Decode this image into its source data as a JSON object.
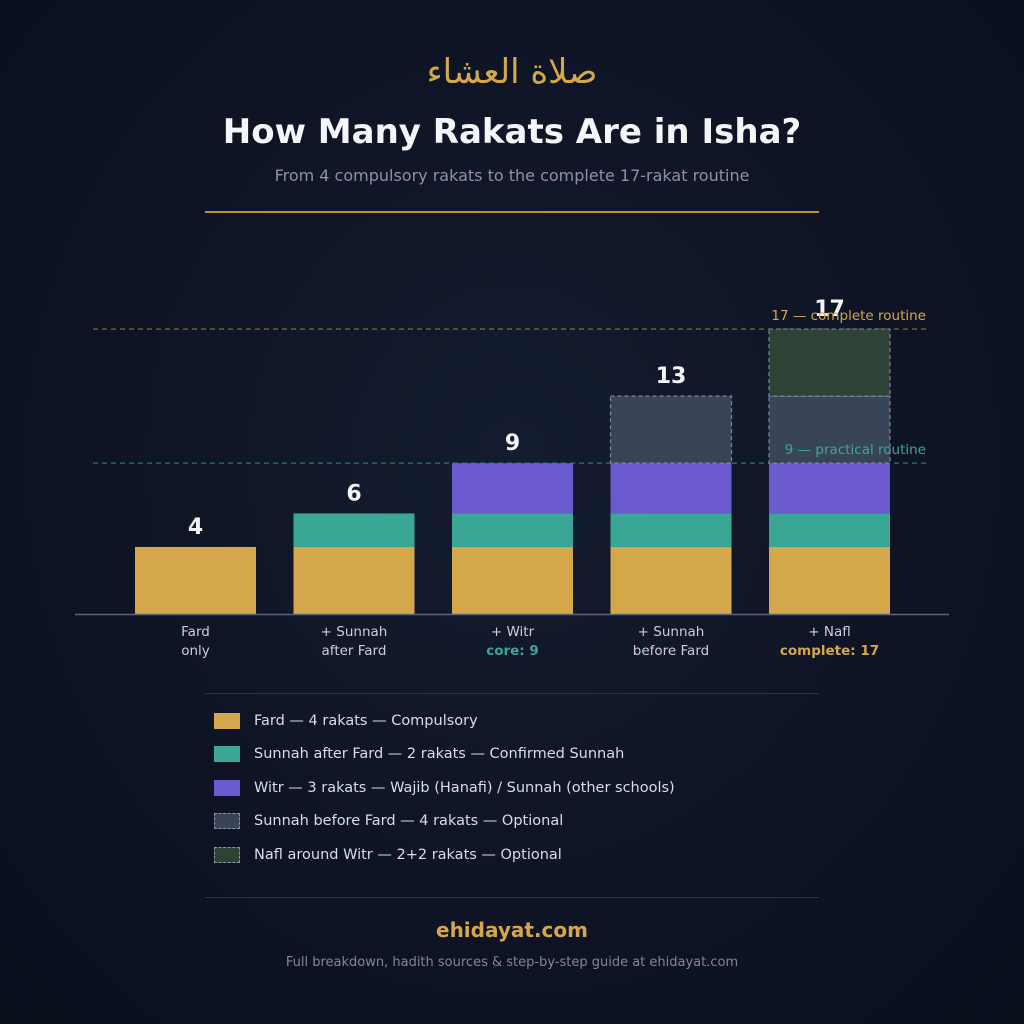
{
  "header": {
    "arabic_title": "صلاة العشاء",
    "title": "How Many Rakats Are in Isha?",
    "subtitle": "From 4 compulsory rakats to the complete 17-rakat routine"
  },
  "colors": {
    "fard": "#d4a84a",
    "sunnah_after": "#3aa796",
    "witr": "#6b59cf",
    "sunnah_before": "#3a4459",
    "nafl": "#2e4236",
    "accent_gold": "#d4a84a",
    "accent_teal": "#3aa796"
  },
  "chart_data": {
    "type": "bar",
    "stacked": true,
    "categories": [
      {
        "line1": "Fard",
        "line2": "only",
        "highlight": ""
      },
      {
        "line1": "+ Sunnah",
        "line2": "after Fard",
        "highlight": ""
      },
      {
        "line1": "+ Witr",
        "line2": "core: 9",
        "highlight": "teal"
      },
      {
        "line1": "+ Sunnah",
        "line2": "before Fard",
        "highlight": ""
      },
      {
        "line1": "+ Nafl",
        "line2": "complete: 17",
        "highlight": "gold"
      }
    ],
    "totals": [
      4,
      6,
      9,
      13,
      17
    ],
    "series": [
      {
        "key": "fard",
        "values": [
          4,
          4,
          4,
          4,
          4
        ],
        "optional": false
      },
      {
        "key": "sunnah_after",
        "values": [
          0,
          2,
          2,
          2,
          2
        ],
        "optional": false
      },
      {
        "key": "witr",
        "values": [
          0,
          0,
          3,
          3,
          3
        ],
        "optional": false
      },
      {
        "key": "sunnah_before",
        "values": [
          0,
          0,
          0,
          4,
          4
        ],
        "optional": true
      },
      {
        "key": "nafl",
        "values": [
          0,
          0,
          0,
          0,
          4
        ],
        "optional": true
      }
    ],
    "ylim": [
      0,
      17
    ],
    "reference_lines": [
      {
        "value": 17,
        "label": "17 — complete routine",
        "color": "gold"
      },
      {
        "value": 9,
        "label": "9 — practical routine",
        "color": "teal"
      }
    ]
  },
  "legend": [
    {
      "key": "fard",
      "label": "Fard — 4 rakats — Compulsory",
      "dashed": false
    },
    {
      "key": "sunnah_after",
      "label": "Sunnah after Fard — 2 rakats — Confirmed Sunnah",
      "dashed": false
    },
    {
      "key": "witr",
      "label": "Witr — 3 rakats — Wajib (Hanafi) / Sunnah (other schools)",
      "dashed": false
    },
    {
      "key": "sunnah_before",
      "label": "Sunnah before Fard — 4 rakats — Optional",
      "dashed": true
    },
    {
      "key": "nafl",
      "label": "Nafl around Witr — 2+2 rakats — Optional",
      "dashed": true
    }
  ],
  "footer": {
    "site": "ehidayat.com",
    "note": "Full breakdown, hadith sources & step-by-step guide at ehidayat.com"
  }
}
